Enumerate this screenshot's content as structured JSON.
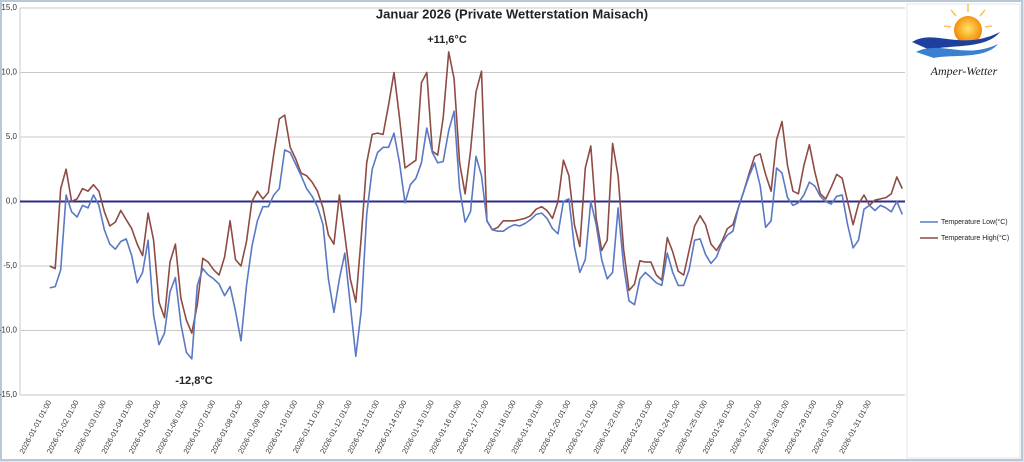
{
  "chart_data": {
    "type": "line",
    "title": "Januar 2026 (Private Wetterstation Maisach)",
    "logo": "Amper-Wetter",
    "annotations": [
      "+11,6°C",
      "-12,8°C"
    ],
    "categories": [
      "2026-01-01 01:00",
      null,
      null,
      null,
      null,
      "2026-01-02 01:00",
      null,
      null,
      null,
      null,
      "2026-01-03 01:00",
      null,
      null,
      null,
      null,
      "2026-01-04 01:00",
      null,
      null,
      null,
      null,
      "2026-01-05 01:00",
      null,
      null,
      null,
      null,
      "2026-01-06 01:00",
      null,
      null,
      null,
      null,
      "2026-01-07 01:00",
      null,
      null,
      null,
      null,
      "2026-01-08 01:00",
      null,
      null,
      null,
      null,
      "2026-01-09 01:00",
      null,
      null,
      null,
      null,
      "2026-01-10 01:00",
      null,
      null,
      null,
      null,
      "2026-01-11 01:00",
      null,
      null,
      null,
      null,
      "2026-01-12 01:00",
      null,
      null,
      null,
      null,
      "2026-01-13 01:00",
      null,
      null,
      null,
      null,
      "2026-01-14 01:00",
      null,
      null,
      null,
      null,
      "2026-01-15 01:00",
      null,
      null,
      null,
      null,
      "2026-01-16 01:00",
      null,
      null,
      null,
      null,
      "2026-01-17 01:00",
      null,
      null,
      null,
      null,
      "2026-01-18 01:00",
      null,
      null,
      null,
      null,
      "2026-01-19 01:00",
      null,
      null,
      null,
      null,
      "2026-01-20 01:00",
      null,
      null,
      null,
      null,
      "2026-01-21 01:00",
      null,
      null,
      null,
      null,
      "2026-01-22 01:00",
      null,
      null,
      null,
      null,
      "2026-01-23 01:00",
      null,
      null,
      null,
      null,
      "2026-01-24 01:00",
      null,
      null,
      null,
      null,
      "2026-01-25 01:00",
      null,
      null,
      null,
      null,
      "2026-01-26 01:00",
      null,
      null,
      null,
      null,
      "2026-01-27 01:00",
      null,
      null,
      null,
      null,
      "2026-01-28 01:00",
      null,
      null,
      null,
      null,
      "2026-01-29 01:00",
      null,
      null,
      null,
      null,
      "2026-01-30 01:00",
      null,
      null,
      null,
      null,
      "2026-01-31 01:00",
      null,
      null,
      null,
      null,
      null,
      null
    ],
    "series": [
      {
        "name": "Temperature Low(°C)",
        "color": "#5a78c4",
        "values": [
          -6.7,
          -6.6,
          -5.3,
          0.5,
          -0.8,
          -1.2,
          -0.3,
          -0.5,
          0.5,
          -0.3,
          -2.2,
          -3.3,
          -3.7,
          -3.1,
          -2.9,
          -4.2,
          -6.3,
          -5.5,
          -3.0,
          -8.8,
          -11.1,
          -10.2,
          -7.0,
          -5.9,
          -9.5,
          -11.7,
          -12.2,
          -6.5,
          -5.2,
          -5.7,
          -6.0,
          -6.4,
          -7.3,
          -6.6,
          -8.5,
          -10.8,
          -6.5,
          -3.5,
          -1.5,
          -0.4,
          -0.4,
          0.5,
          1.0,
          4.0,
          3.8,
          2.9,
          2.0,
          1.0,
          0.4,
          -0.4,
          -1.8,
          -6.0,
          -8.6,
          -6.0,
          -4.0,
          -8.0,
          -12.0,
          -8.5,
          -1.0,
          2.5,
          3.8,
          4.2,
          4.2,
          5.3,
          3.0,
          -0.1,
          1.3,
          1.8,
          3.0,
          5.7,
          3.8,
          3.0,
          3.1,
          5.5,
          7.0,
          1.0,
          -1.6,
          -0.8,
          3.5,
          2.0,
          -1.5,
          -2.2,
          -2.3,
          -2.3,
          -2.0,
          -1.8,
          -1.9,
          -1.7,
          -1.4,
          -1.0,
          -0.9,
          -1.3,
          -2.1,
          -2.5,
          0.0,
          0.2,
          -3.5,
          -5.5,
          -4.5,
          0.0,
          -1.8,
          -4.5,
          -6.0,
          -5.5,
          -0.5,
          -5.0,
          -7.7,
          -8.0,
          -6.0,
          -5.5,
          -5.9,
          -6.3,
          -6.5,
          -4.0,
          -5.5,
          -6.5,
          -6.5,
          -5.3,
          -3.0,
          -2.9,
          -4.1,
          -4.8,
          -4.3,
          -3.2,
          -2.6,
          -2.3,
          -0.5,
          0.8,
          2.0,
          3.0,
          1.2,
          -2.0,
          -1.5,
          2.6,
          2.2,
          0.3,
          -0.3,
          -0.1,
          0.5,
          1.5,
          1.2,
          0.4,
          0.0,
          -0.2,
          0.4,
          0.5,
          -1.8,
          -3.6,
          -3.0,
          -0.6,
          -0.3,
          -0.7,
          -0.3,
          -0.5,
          -0.8,
          0.0,
          -1.0
        ]
      },
      {
        "name": "Temperature High(°C)",
        "color": "#8e4b44",
        "values": [
          -5.0,
          -5.2,
          1.0,
          2.5,
          0.0,
          0.2,
          1.0,
          0.8,
          1.3,
          0.8,
          -0.8,
          -1.9,
          -1.6,
          -0.7,
          -1.4,
          -2.1,
          -3.3,
          -4.2,
          -0.9,
          -3.0,
          -7.8,
          -9.0,
          -4.7,
          -3.3,
          -7.5,
          -9.2,
          -10.2,
          -8.0,
          -4.4,
          -4.7,
          -5.3,
          -5.7,
          -4.3,
          -1.5,
          -4.5,
          -5.0,
          -3.1,
          0.0,
          0.8,
          0.2,
          0.7,
          3.7,
          6.4,
          6.7,
          4.2,
          3.3,
          2.2,
          2.0,
          1.5,
          0.8,
          -0.5,
          -2.6,
          -3.3,
          0.5,
          -2.6,
          -6.0,
          -7.8,
          -2.8,
          3.0,
          5.2,
          5.3,
          5.2,
          7.5,
          10.0,
          6.5,
          2.6,
          2.9,
          3.2,
          9.2,
          10.0,
          3.9,
          3.6,
          6.5,
          11.6,
          9.5,
          3.0,
          0.6,
          3.9,
          8.5,
          10.1,
          -1.5,
          -2.2,
          -2.0,
          -1.5,
          -1.5,
          -1.5,
          -1.4,
          -1.3,
          -1.1,
          -0.6,
          -0.4,
          -0.7,
          -1.3,
          0.0,
          3.2,
          2.0,
          -1.8,
          -3.5,
          2.6,
          4.3,
          -1.3,
          -3.8,
          -3.0,
          4.5,
          2.0,
          -3.7,
          -6.9,
          -6.4,
          -4.6,
          -4.7,
          -4.7,
          -5.7,
          -6.1,
          -2.8,
          -3.9,
          -5.4,
          -5.7,
          -3.8,
          -1.9,
          -1.1,
          -1.8,
          -3.3,
          -3.8,
          -3.1,
          -2.1,
          -1.8,
          -0.5,
          0.8,
          2.2,
          3.5,
          3.7,
          2.1,
          0.8,
          4.8,
          6.2,
          2.8,
          0.8,
          0.6,
          2.8,
          4.4,
          2.3,
          0.6,
          0.2,
          1.1,
          2.1,
          1.8,
          0.0,
          -1.8,
          -0.2,
          0.5,
          -0.3,
          0.1,
          0.2,
          0.3,
          0.6,
          1.9,
          1.0
        ]
      }
    ],
    "ylim": [
      -15,
      15
    ],
    "yticks": [
      {
        "value": 15,
        "label": "15,0"
      },
      {
        "value": 10,
        "label": "10,0"
      },
      {
        "value": 5,
        "label": "5,0"
      },
      {
        "value": 0,
        "label": "0,0"
      },
      {
        "value": -5,
        "label": "-5,0"
      },
      {
        "value": -10,
        "label": "-10,0"
      },
      {
        "value": -15,
        "label": "-15,0"
      }
    ],
    "grid": true,
    "zero_line_color": "#2b2b8c",
    "legend": "right"
  }
}
